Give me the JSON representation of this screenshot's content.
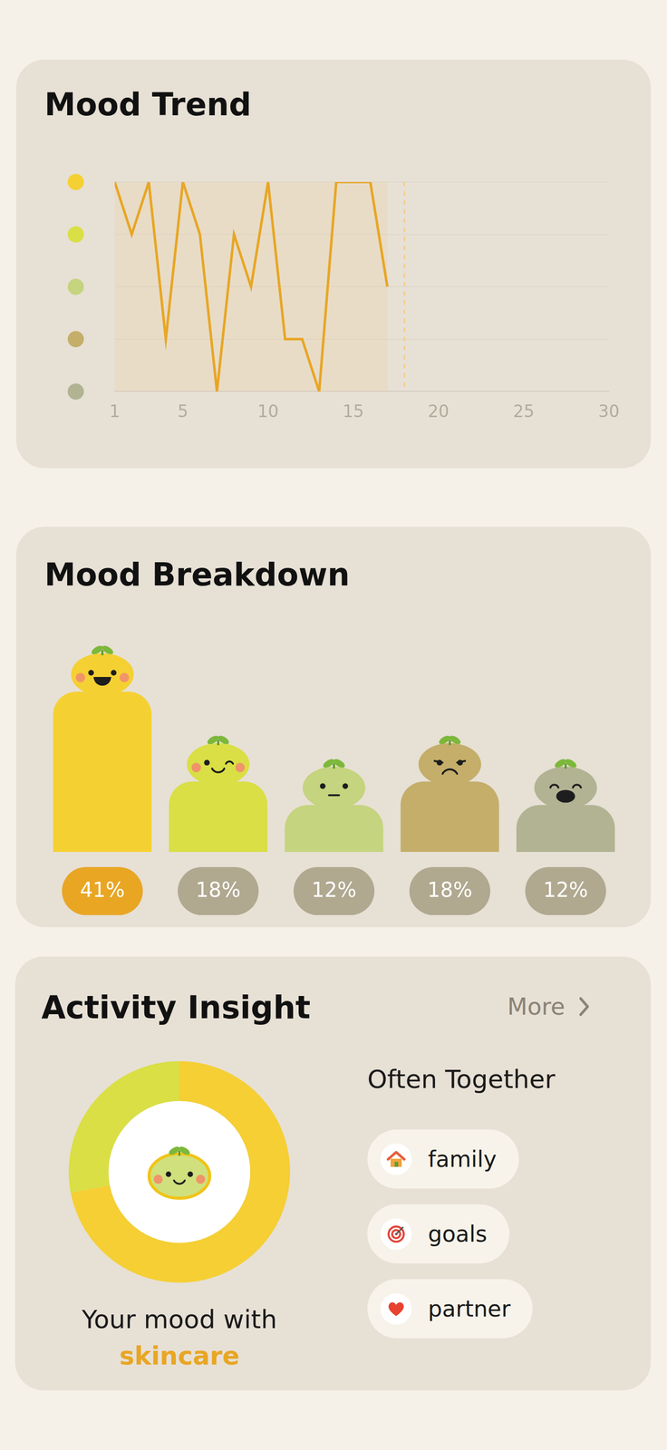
{
  "chart_data": [
    {
      "type": "line",
      "title": "Mood Trend",
      "x": [
        1,
        2,
        3,
        4,
        5,
        6,
        7,
        8,
        9,
        10,
        11,
        12,
        13,
        14,
        15,
        16,
        17
      ],
      "values": [
        5,
        4,
        5,
        2,
        5,
        4,
        1,
        4,
        3,
        5,
        2,
        2,
        1,
        5,
        5,
        5,
        3
      ],
      "color": "#e8a623",
      "xlim": [
        1,
        30
      ],
      "xticks": [
        1,
        5,
        10,
        15,
        20,
        25,
        30
      ],
      "ylim": [
        1,
        5
      ],
      "yticks": [
        1,
        2,
        3,
        4,
        5
      ],
      "tick_labels": "x",
      "grid": true,
      "reference_line": {
        "x": 18
      }
    },
    {
      "type": "bar",
      "title": "Mood Breakdown",
      "categories": [
        null,
        null,
        null,
        null,
        null
      ],
      "values": [
        41,
        18,
        12,
        18,
        12
      ],
      "value_labels": [
        "41%",
        "18%",
        "12%",
        "18%",
        "12%"
      ],
      "data_labels": true,
      "colors": [
        "#f5d033",
        "#d9df44",
        "#c5d47e",
        "#c4ae6a",
        "#b1b392"
      ],
      "ylim": [
        0,
        45
      ],
      "tick_labels": false
    },
    {
      "type": "doughnut",
      "title": "Activity Insight",
      "values": [
        72,
        28
      ],
      "colors": [
        "#f5cf33",
        "#d9df44"
      ]
    }
  ],
  "activity_insight": {
    "link": "More",
    "caption": {
      "text": "Your mood with",
      "activity": "skincare"
    },
    "often_together": {
      "heading": "Often Together",
      "items": [
        "family",
        "goals",
        "partner"
      ]
    }
  }
}
